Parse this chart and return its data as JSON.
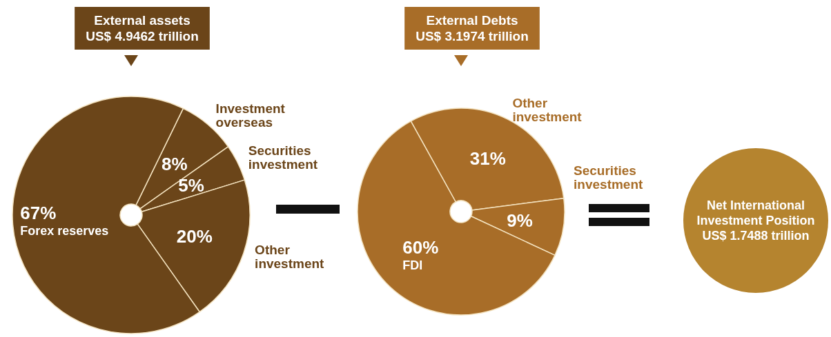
{
  "chart_data": [
    {
      "type": "pie",
      "title": "External assets",
      "subtitle": "US$ 4.9462 trillion",
      "categories": [
        "Investment overseas",
        "Securities investment",
        "Other investment",
        "Forex reserves"
      ],
      "values": [
        8,
        5,
        20,
        67
      ],
      "colors": [
        "#6b4519",
        "#6b4519",
        "#6b4519",
        "#6b4519"
      ],
      "value_labels": [
        "8%",
        "5%",
        "20%",
        "67%"
      ],
      "legend": false
    },
    {
      "type": "pie",
      "title": "External Debts",
      "subtitle": "US$ 3.1974 trillion",
      "categories": [
        "Other investment",
        "Securities investment",
        "FDI"
      ],
      "values": [
        31,
        9,
        60
      ],
      "colors": [
        "#a86d28",
        "#a86d28",
        "#a86d28"
      ],
      "value_labels": [
        "31%",
        "9%",
        "60%"
      ],
      "legend": false
    },
    {
      "type": "other",
      "title": "Net International Investment Position",
      "subtitle": "US$ 1.7488 trillion",
      "color": "#b5842f"
    }
  ]
}
